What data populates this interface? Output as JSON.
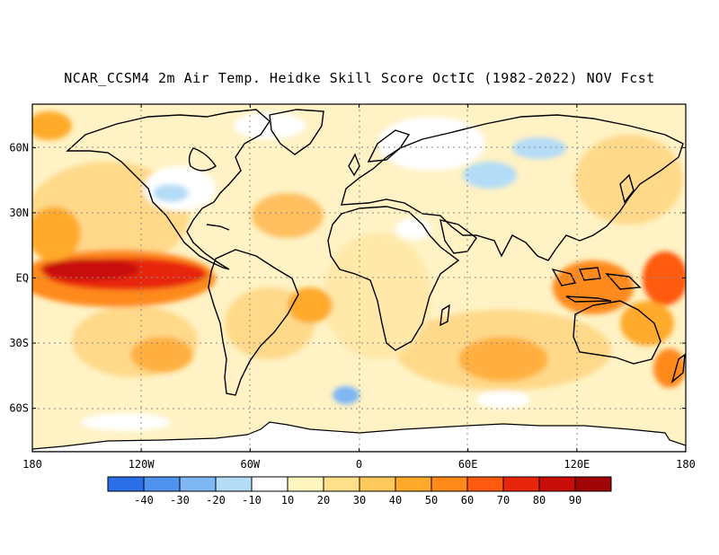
{
  "title": "NCAR_CCSM4 2m Air Temp. Heidke Skill Score OctIC (1982-2022) NOV Fcst",
  "map": {
    "lat_labels": [
      "60N",
      "30N",
      "EQ",
      "30S",
      "60S"
    ],
    "lat_values": [
      60,
      30,
      0,
      -30,
      -60
    ],
    "lon_labels": [
      "180",
      "120W",
      "60W",
      "0",
      "60E",
      "120E",
      "180"
    ],
    "lon_values": [
      -180,
      -120,
      -60,
      0,
      60,
      120,
      180
    ],
    "lat_range": [
      -80,
      80
    ],
    "lon_range": [
      -180,
      180
    ],
    "grid": "dotted"
  },
  "colorbar": {
    "labels": [
      "-40",
      "-30",
      "-20",
      "-10",
      "10",
      "20",
      "30",
      "40",
      "50",
      "60",
      "70",
      "80",
      "90"
    ],
    "colors": [
      "#2a6ee8",
      "#4f93ee",
      "#7fb6f4",
      "#b4dcf7",
      "#ffffff",
      "#fff5bf",
      "#ffe08a",
      "#ffc85a",
      "#ffaa2a",
      "#ff8a1a",
      "#ff5a10",
      "#e8260c",
      "#c80c08",
      "#a00404"
    ]
  }
}
